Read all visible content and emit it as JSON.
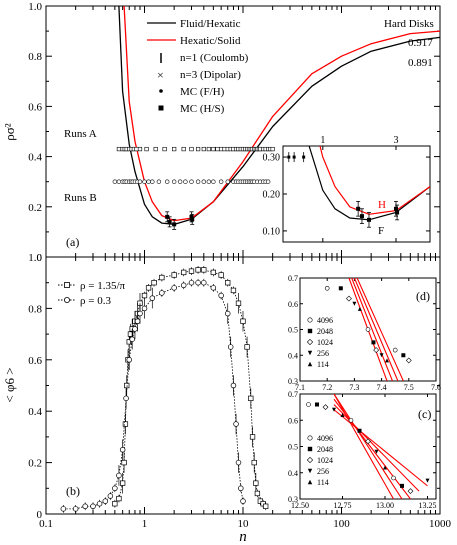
{
  "chart_data": [
    {
      "panel": "top",
      "type": "line",
      "panel_label": "(a)",
      "xscale": "log",
      "xlim": [
        0.1,
        1000
      ],
      "ylim": [
        0,
        1
      ],
      "ylabel": "ρσ²",
      "y_ticks": [
        "0",
        "0.2",
        "0.4",
        "0.6",
        "0.8",
        "1.0"
      ],
      "legend_placement": "top-center",
      "corner_text": "Hard Disks",
      "right_values": [
        "0.917",
        "0.891"
      ],
      "series": [
        {
          "name": "Fluid/Hexatic",
          "color": "#000000",
          "style": "solid",
          "x": [
            0.55,
            0.6,
            0.7,
            0.8,
            1.0,
            1.2,
            1.5,
            2.0,
            3.0,
            5.0,
            10,
            20,
            50,
            100,
            200,
            500,
            1000
          ],
          "y": [
            1.0,
            0.66,
            0.45,
            0.34,
            0.21,
            0.16,
            0.135,
            0.13,
            0.15,
            0.22,
            0.36,
            0.52,
            0.68,
            0.76,
            0.82,
            0.86,
            0.875
          ]
        },
        {
          "name": "Hexatic/Solid",
          "color": "#ff0000",
          "style": "solid",
          "x": [
            0.62,
            0.7,
            0.8,
            1.0,
            1.2,
            1.5,
            2.0,
            3.0,
            5.0,
            10,
            20,
            50,
            100,
            200,
            500,
            1000
          ],
          "y": [
            1.0,
            0.62,
            0.46,
            0.3,
            0.22,
            0.165,
            0.145,
            0.155,
            0.22,
            0.38,
            0.56,
            0.73,
            0.8,
            0.85,
            0.89,
            0.9
          ]
        }
      ],
      "marker_legend": [
        {
          "name": "n=1 (Coulomb)",
          "marker": "vline"
        },
        {
          "name": "n=3 (Dipolar)",
          "marker": "x"
        },
        {
          "name": "MC (F/H)",
          "marker": "dot"
        },
        {
          "name": "MC (H/S)",
          "marker": "square"
        }
      ],
      "runs": [
        {
          "label": "Runs A",
          "y": 0.43,
          "x": [
            0.55,
            0.6,
            0.63,
            0.66,
            0.7,
            0.74,
            0.78,
            0.83,
            0.9,
            1.05,
            1.3,
            1.6,
            2.0,
            2.5,
            3.0,
            3.5,
            4.0,
            4.5,
            5.0,
            5.5,
            6.0,
            6.5,
            7.0,
            7.5,
            8.0,
            8.5,
            9.0,
            9.5,
            10,
            10.5,
            11,
            11.5,
            12,
            12.5,
            13,
            13.5,
            14,
            14.5,
            15,
            16,
            17,
            18,
            19,
            20
          ]
        },
        {
          "label": "Runs B",
          "y": 0.3,
          "x": [
            0.5,
            0.55,
            0.6,
            0.63,
            0.66,
            0.7,
            0.73,
            0.76,
            0.8,
            0.85,
            0.9,
            1.0,
            1.1,
            1.2,
            1.4,
            1.7,
            2.0,
            2.3,
            2.6,
            3.0,
            3.5,
            4.0,
            4.5,
            5.0,
            6.0,
            7.0,
            8.0,
            8.5,
            9.0,
            9.5,
            10,
            10.5,
            11,
            11.5,
            12,
            12.5,
            13,
            14,
            15,
            16,
            17,
            18
          ]
        }
      ],
      "mc_points": [
        {
          "x": 1.7,
          "y": 0.16,
          "err": 0.02
        },
        {
          "x": 1.8,
          "y": 0.14,
          "err": 0.02
        },
        {
          "x": 2.0,
          "y": 0.13,
          "err": 0.02
        },
        {
          "x": 3.0,
          "y": 0.16,
          "err": 0.02
        },
        {
          "x": 3.05,
          "y": 0.15,
          "err": 0.02
        }
      ],
      "inset": {
        "xlim": [
          0.55,
          5.0
        ],
        "ylim": [
          0.07,
          0.33
        ],
        "x_ticks": [
          "1",
          "3"
        ],
        "y_ticks": [
          "0.10",
          "0.20",
          "0.30"
        ],
        "labels": {
          "hexatic_solid": "H",
          "fluid_hexatic": "F"
        }
      }
    },
    {
      "panel": "bottom",
      "type": "scatter",
      "panel_label": "(b)",
      "xscale": "log",
      "xlim": [
        0.1,
        1000
      ],
      "ylim": [
        0,
        1
      ],
      "xlabel": "n",
      "ylabel": "< φ6 >",
      "x_ticks": [
        "0.1",
        "1",
        "10",
        "100",
        "1000"
      ],
      "y_ticks": [
        "0",
        "0.2",
        "0.4",
        "0.6",
        "0.8",
        "1.0"
      ],
      "legend_placement": "top-left",
      "series": [
        {
          "name": "ρ = 1.35/π",
          "marker": "square",
          "x": [
            0.5,
            0.55,
            0.6,
            0.62,
            0.64,
            0.66,
            0.68,
            0.7,
            0.72,
            0.75,
            0.8,
            0.85,
            0.9,
            1.0,
            1.1,
            1.25,
            1.5,
            2.0,
            2.5,
            3.0,
            3.5,
            4.0,
            5.0,
            6.0,
            7.0,
            8.0,
            9.0,
            10,
            11,
            12,
            12.5,
            13,
            13.5,
            14,
            15,
            16,
            17
          ],
          "y": [
            0.04,
            0.06,
            0.12,
            0.2,
            0.35,
            0.5,
            0.6,
            0.67,
            0.7,
            0.72,
            0.75,
            0.78,
            0.82,
            0.85,
            0.88,
            0.9,
            0.92,
            0.93,
            0.94,
            0.945,
            0.95,
            0.95,
            0.94,
            0.93,
            0.9,
            0.87,
            0.82,
            0.75,
            0.65,
            0.45,
            0.3,
            0.2,
            0.12,
            0.08,
            0.05,
            0.04,
            0.03
          ]
        },
        {
          "name": "ρ = 0.3",
          "marker": "circle",
          "x": [
            0.15,
            0.2,
            0.25,
            0.3,
            0.35,
            0.4,
            0.45,
            0.5,
            0.55,
            0.6,
            0.65,
            0.7,
            0.75,
            0.8,
            0.85,
            0.9,
            1.0,
            1.2,
            1.5,
            2.0,
            2.5,
            3.0,
            3.5,
            4.0,
            5.0,
            6.0,
            7.0,
            7.5,
            8.0,
            8.5,
            9.0,
            9.5,
            10
          ],
          "y": [
            0.02,
            0.02,
            0.03,
            0.03,
            0.04,
            0.05,
            0.07,
            0.1,
            0.15,
            0.25,
            0.45,
            0.6,
            0.68,
            0.72,
            0.75,
            0.78,
            0.8,
            0.84,
            0.86,
            0.88,
            0.89,
            0.9,
            0.9,
            0.9,
            0.88,
            0.85,
            0.78,
            0.65,
            0.5,
            0.35,
            0.2,
            0.1,
            0.05
          ]
        }
      ],
      "insets": [
        {
          "panel_label": "(d)",
          "xlim": [
            7.1,
            7.6
          ],
          "ylim": [
            0.3,
            0.7
          ],
          "x_ticks": [
            "7.1",
            "7.2",
            "7.3",
            "7.4",
            "7.5",
            "7.6"
          ],
          "y_ticks": [
            "0.3",
            "0.4",
            "0.5",
            "0.6",
            "0.7"
          ],
          "legend": [
            "4096",
            "2048",
            "1024",
            "256",
            "114"
          ],
          "points": [
            {
              "x": 7.2,
              "y": 0.66
            },
            {
              "x": 7.25,
              "y": 0.66
            },
            {
              "x": 7.28,
              "y": 0.62
            },
            {
              "x": 7.3,
              "y": 0.6
            },
            {
              "x": 7.32,
              "y": 0.58
            },
            {
              "x": 7.35,
              "y": 0.5
            },
            {
              "x": 7.37,
              "y": 0.45
            },
            {
              "x": 7.38,
              "y": 0.42
            },
            {
              "x": 7.4,
              "y": 0.4
            },
            {
              "x": 7.42,
              "y": 0.38
            },
            {
              "x": 7.45,
              "y": 0.42
            },
            {
              "x": 7.48,
              "y": 0.4
            },
            {
              "x": 7.5,
              "y": 0.38
            }
          ],
          "fit_lines": [
            {
              "x": [
                7.28,
                7.42
              ],
              "y": [
                0.7,
                0.3
              ]
            },
            {
              "x": [
                7.29,
                7.44
              ],
              "y": [
                0.7,
                0.3
              ]
            },
            {
              "x": [
                7.3,
                7.46
              ],
              "y": [
                0.7,
                0.3
              ]
            },
            {
              "x": [
                7.31,
                7.48
              ],
              "y": [
                0.7,
                0.3
              ]
            }
          ]
        },
        {
          "panel_label": "(c)",
          "xlim": [
            12.5,
            13.3
          ],
          "ylim": [
            0.3,
            0.7
          ],
          "x_ticks": [
            "12.50",
            "12.75",
            "13.00",
            "13.25"
          ],
          "y_ticks": [
            "0.3",
            "0.4",
            "0.5",
            "0.6",
            "0.7"
          ],
          "legend": [
            "4096",
            "2048",
            "1024",
            "256",
            "114"
          ],
          "points": [
            {
              "x": 12.55,
              "y": 0.66
            },
            {
              "x": 12.6,
              "y": 0.66
            },
            {
              "x": 12.65,
              "y": 0.65
            },
            {
              "x": 12.7,
              "y": 0.64
            },
            {
              "x": 12.75,
              "y": 0.62
            },
            {
              "x": 12.8,
              "y": 0.6
            },
            {
              "x": 12.85,
              "y": 0.56
            },
            {
              "x": 12.9,
              "y": 0.52
            },
            {
              "x": 12.95,
              "y": 0.48
            },
            {
              "x": 13.0,
              "y": 0.42
            },
            {
              "x": 13.05,
              "y": 0.38
            },
            {
              "x": 13.1,
              "y": 0.35
            },
            {
              "x": 13.15,
              "y": 0.33
            },
            {
              "x": 13.25,
              "y": 0.37
            }
          ],
          "fit_lines": [
            {
              "x": [
                12.7,
                13.05
              ],
              "y": [
                0.7,
                0.3
              ]
            },
            {
              "x": [
                12.7,
                13.1
              ],
              "y": [
                0.7,
                0.3
              ]
            },
            {
              "x": [
                12.7,
                13.15
              ],
              "y": [
                0.68,
                0.3
              ]
            },
            {
              "x": [
                12.7,
                13.2
              ],
              "y": [
                0.66,
                0.33
              ]
            },
            {
              "x": [
                12.7,
                13.25
              ],
              "y": [
                0.64,
                0.35
              ]
            }
          ]
        }
      ]
    }
  ],
  "colors": {
    "black_curve": "#000000",
    "red_curve": "#ff0000",
    "axes": "#000000",
    "background": "#ffffff"
  }
}
